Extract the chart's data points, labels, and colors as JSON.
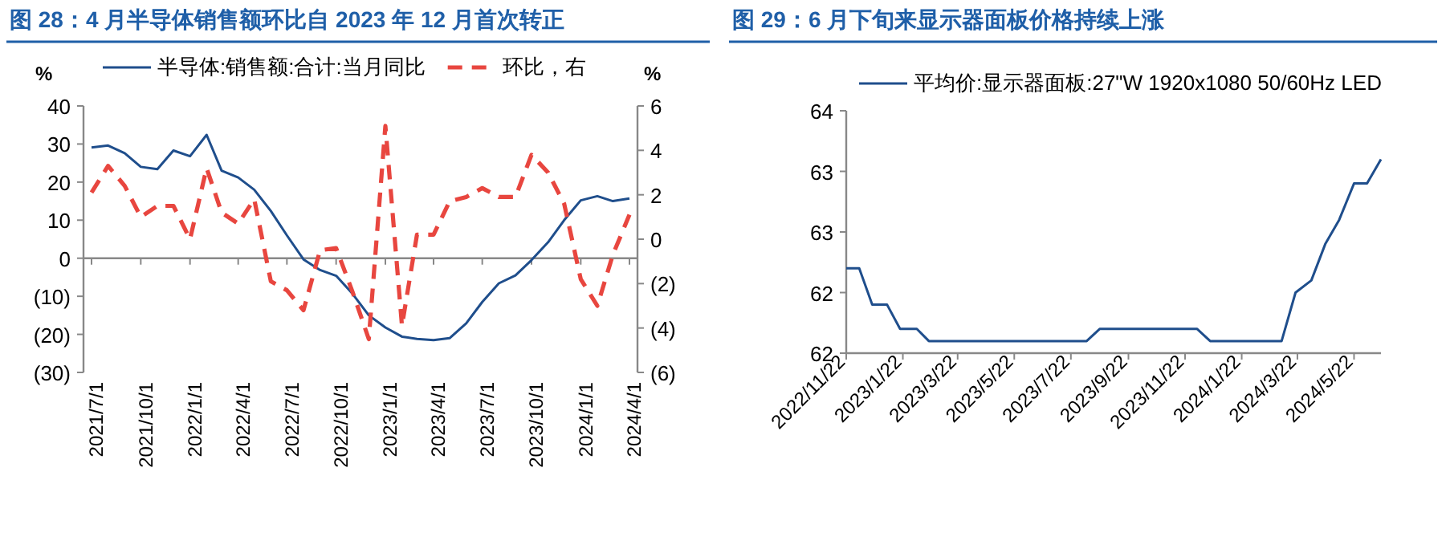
{
  "chart_data": [
    {
      "type": "line",
      "title": "图 28：4 月半导体销售额环比自 2023 年 12 月首次转正",
      "ylabel": "%",
      "y2label": "%",
      "legend": "top",
      "x": [
        "2021-07-01",
        "2021-08-01",
        "2021-09-01",
        "2021-10-01",
        "2021-11-01",
        "2021-12-01",
        "2022-01-01",
        "2022-02-01",
        "2022-03-01",
        "2022-04-01",
        "2022-05-01",
        "2022-06-01",
        "2022-07-01",
        "2022-08-01",
        "2022-09-01",
        "2022-10-01",
        "2022-11-01",
        "2022-12-01",
        "2023-01-01",
        "2023-02-01",
        "2023-03-01",
        "2023-04-01",
        "2023-05-01",
        "2023-06-01",
        "2023-07-01",
        "2023-08-01",
        "2023-09-01",
        "2023-10-01",
        "2023-11-01",
        "2023-12-01",
        "2024-01-01",
        "2024-02-01",
        "2024-03-01",
        "2024-04-01"
      ],
      "xlim": [
        "2021-06-16",
        "2024-04-16"
      ],
      "xticks": [
        {
          "value": "2021-07-01",
          "label": "2021/7/1"
        },
        {
          "value": "2021-10-01",
          "label": "2021/10/1"
        },
        {
          "value": "2022-01-01",
          "label": "2022/1/1"
        },
        {
          "value": "2022-04-01",
          "label": "2022/4/1"
        },
        {
          "value": "2022-07-01",
          "label": "2022/7/1"
        },
        {
          "value": "2022-10-01",
          "label": "2022/10/1"
        },
        {
          "value": "2023-01-01",
          "label": "2023/1/1"
        },
        {
          "value": "2023-04-01",
          "label": "2023/4/1"
        },
        {
          "value": "2023-07-01",
          "label": "2023/7/1"
        },
        {
          "value": "2023-10-01",
          "label": "2023/10/1"
        },
        {
          "value": "2024-01-01",
          "label": "2024/1/1"
        },
        {
          "value": "2024-04-01",
          "label": "2024/4/1"
        }
      ],
      "ylim": [
        -30,
        40
      ],
      "yticks": [
        {
          "value": -30,
          "label": "(30)"
        },
        {
          "value": -20,
          "label": "(20)"
        },
        {
          "value": -10,
          "label": "(10)"
        },
        0,
        10,
        20,
        30,
        40
      ],
      "y2lim": [
        -6,
        6
      ],
      "y2ticks": [
        {
          "value": -6,
          "label": "(6)"
        },
        {
          "value": -4,
          "label": "(4)"
        },
        {
          "value": -2,
          "label": "(2)"
        },
        0,
        2,
        4,
        6
      ],
      "series": [
        {
          "name": "半导体:销售额:合计:当月同比",
          "color": "#1f4e8c",
          "line_style": "solid",
          "values": [
            29.1,
            29.6,
            27.6,
            24.0,
            23.4,
            28.3,
            26.8,
            32.4,
            23.0,
            21.2,
            18.0,
            12.4,
            6.0,
            -0.3,
            -3.1,
            -4.6,
            -9.4,
            -15.0,
            -18.2,
            -20.6,
            -21.2,
            -21.5,
            -21.0,
            -17.1,
            -11.5,
            -6.6,
            -4.5,
            -0.5,
            4.2,
            10.0,
            15.2,
            16.3,
            15.0,
            15.7
          ]
        },
        {
          "name": "环比，右",
          "color": "#e8463f",
          "axis": "y2",
          "line_style": "dashed",
          "values": [
            2.1,
            3.3,
            2.4,
            1.0,
            1.5,
            1.5,
            0.0,
            3.2,
            1.2,
            0.7,
            1.8,
            -1.9,
            -2.3,
            -3.2,
            -0.5,
            -0.4,
            -2.4,
            -4.5,
            5.1,
            -3.9,
            0.2,
            0.2,
            1.7,
            1.9,
            2.3,
            1.9,
            1.9,
            3.8,
            3.0,
            1.6,
            -1.8,
            -3.0,
            -0.7,
            1.1
          ]
        }
      ]
    },
    {
      "type": "line",
      "title": "图 29：6 月下旬来显示器面板价格持续上涨",
      "legend": "top right",
      "x": [
        "2022-11-22",
        "2022-12-06",
        "2022-12-20",
        "2023-01-05",
        "2023-01-19",
        "2023-02-06",
        "2023-02-19",
        "2023-08-08",
        "2023-08-22",
        "2023-12-05",
        "2023-12-19",
        "2024-03-05",
        "2024-03-20",
        "2024-04-06",
        "2024-04-21",
        "2024-05-06",
        "2024-05-22",
        "2024-06-05",
        "2024-06-20"
      ],
      "xlim": [
        "2022-11-22",
        "2024-06-20"
      ],
      "xticks": [
        {
          "value": "2022-11-22",
          "label": "2022/11/22"
        },
        {
          "value": "2023-01-22",
          "label": "2023/1/22"
        },
        {
          "value": "2023-03-22",
          "label": "2023/3/22"
        },
        {
          "value": "2023-05-22",
          "label": "2023/5/22"
        },
        {
          "value": "2023-07-22",
          "label": "2023/7/22"
        },
        {
          "value": "2023-09-22",
          "label": "2023/9/22"
        },
        {
          "value": "2023-11-22",
          "label": "2023/11/22"
        },
        {
          "value": "2024-01-22",
          "label": "2024/1/22"
        },
        {
          "value": "2024-03-22",
          "label": "2024/3/22"
        },
        {
          "value": "2024-05-22",
          "label": "2024/5/22"
        }
      ],
      "ylim": [
        62,
        64
      ],
      "yticks": [
        62,
        {
          "value": 62.5,
          "label": "62"
        },
        63,
        {
          "value": 63.5,
          "label": "63"
        },
        64
      ],
      "series": [
        {
          "name": "平均价:显示器面板:27\"W 1920x1080 50/60Hz LED",
          "color": "#1f4e8c",
          "line_style": "solid",
          "values": [
            62.7,
            62.7,
            62.4,
            62.4,
            62.2,
            62.2,
            62.1,
            62.1,
            62.2,
            62.2,
            62.1,
            62.1,
            62.5,
            62.6,
            62.9,
            63.1,
            63.4,
            63.4,
            63.6
          ]
        }
      ]
    }
  ]
}
